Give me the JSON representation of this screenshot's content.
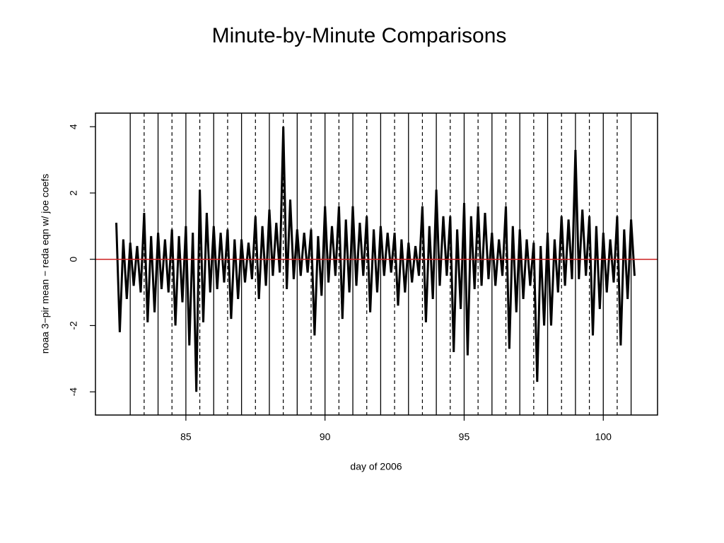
{
  "chart_data": {
    "type": "line",
    "title": "Minute-by-Minute Comparisons",
    "x_label": "day of 2006",
    "y_label": "noaa 3−pir mean − reda eqn w/ joe coefs",
    "x": [
      82.5,
      82.625,
      82.75,
      82.875,
      83,
      83.125,
      83.25,
      83.375,
      83.5,
      83.625,
      83.75,
      83.875,
      84,
      84.125,
      84.25,
      84.375,
      84.5,
      84.625,
      84.75,
      84.875,
      85,
      85.125,
      85.25,
      85.375,
      85.5,
      85.625,
      85.75,
      85.875,
      86,
      86.125,
      86.25,
      86.375,
      86.5,
      86.625,
      86.75,
      86.875,
      87,
      87.125,
      87.25,
      87.375,
      87.5,
      87.625,
      87.75,
      87.875,
      88,
      88.125,
      88.25,
      88.375,
      88.5,
      88.625,
      88.75,
      88.875,
      89,
      89.125,
      89.25,
      89.375,
      89.5,
      89.625,
      89.75,
      89.875,
      90,
      90.125,
      90.25,
      90.375,
      90.5,
      90.625,
      90.75,
      90.875,
      91,
      91.125,
      91.25,
      91.375,
      91.5,
      91.625,
      91.75,
      91.875,
      92,
      92.125,
      92.25,
      92.375,
      92.5,
      92.625,
      92.75,
      92.875,
      93,
      93.125,
      93.25,
      93.375,
      93.5,
      93.625,
      93.75,
      93.875,
      94,
      94.125,
      94.25,
      94.375,
      94.5,
      94.625,
      94.75,
      94.875,
      95,
      95.125,
      95.25,
      95.375,
      95.5,
      95.625,
      95.75,
      95.875,
      96,
      96.125,
      96.25,
      96.375,
      96.5,
      96.625,
      96.75,
      96.875,
      97,
      97.125,
      97.25,
      97.375,
      97.5,
      97.625,
      97.75,
      97.875,
      98,
      98.125,
      98.25,
      98.375,
      98.5,
      98.625,
      98.75,
      98.875,
      99,
      99.125,
      99.25,
      99.375,
      99.5,
      99.625,
      99.75,
      99.875,
      100,
      100.125,
      100.25,
      100.375,
      100.5,
      100.625,
      100.75,
      100.875,
      101,
      101.125
    ],
    "values": [
      1.1,
      -2.2,
      0.6,
      -1.2,
      0.5,
      -0.8,
      0.4,
      -1.0,
      1.4,
      -1.9,
      0.7,
      -1.6,
      0.8,
      -0.9,
      0.6,
      -1.0,
      0.9,
      -2.0,
      0.7,
      -1.3,
      1.0,
      -2.6,
      0.8,
      -4.0,
      2.1,
      -1.9,
      1.4,
      -1.0,
      1.0,
      -0.9,
      0.8,
      -0.7,
      0.9,
      -1.8,
      0.6,
      -1.2,
      0.6,
      -0.7,
      0.5,
      -0.6,
      1.3,
      -1.2,
      1.0,
      -0.8,
      1.5,
      -0.5,
      1.1,
      -0.4,
      4.0,
      -0.9,
      1.8,
      -0.6,
      0.9,
      -0.5,
      0.8,
      -0.4,
      0.9,
      -2.3,
      0.7,
      -1.1,
      1.6,
      -0.7,
      1.0,
      -0.5,
      1.6,
      -1.8,
      1.2,
      -1.0,
      1.6,
      -0.8,
      1.1,
      -0.5,
      1.3,
      -1.6,
      0.9,
      -1.0,
      1.0,
      -0.5,
      0.8,
      -0.4,
      0.8,
      -1.4,
      0.6,
      -1.0,
      0.5,
      -0.7,
      0.4,
      -0.5,
      1.6,
      -1.9,
      1.0,
      -1.2,
      2.1,
      -0.8,
      1.3,
      -0.5,
      1.3,
      -2.8,
      0.9,
      -1.5,
      1.7,
      -2.9,
      1.3,
      -0.9,
      1.6,
      -0.8,
      1.4,
      -0.6,
      0.8,
      -0.8,
      0.6,
      -0.5,
      1.6,
      -2.7,
      1.0,
      -1.6,
      0.9,
      -1.2,
      0.6,
      -0.8,
      0.5,
      -3.7,
      0.4,
      -2.0,
      0.8,
      -2.0,
      0.6,
      -1.0,
      1.3,
      -0.8,
      1.2,
      -0.6,
      3.3,
      -0.6,
      1.5,
      -0.5,
      1.3,
      -2.3,
      1.0,
      -1.5,
      0.8,
      -1.0,
      0.6,
      -0.7,
      1.3,
      -2.6,
      0.9,
      -1.2,
      1.2,
      -0.5
    ],
    "color": "#000000",
    "xlim": [
      81.75,
      101.95
    ],
    "ylim": [
      -4.7,
      4.41
    ],
    "xticks": [
      85,
      90,
      95,
      100
    ],
    "yticks": [
      -4,
      -2,
      0,
      2,
      4
    ],
    "vlines": [
      83,
      84,
      85,
      86,
      87,
      88,
      89,
      90,
      91,
      92,
      93,
      94,
      95,
      96,
      97,
      98,
      99,
      100,
      101
    ],
    "vlines_dashed": [
      83.5,
      84.5,
      85.5,
      86.5,
      87.5,
      88.5,
      89.5,
      90.5,
      91.5,
      92.5,
      93.5,
      94.5,
      95.5,
      96.5,
      97.5,
      98.5,
      99.5,
      100.5
    ],
    "hline": 0,
    "hline_color": "#cc2222"
  }
}
